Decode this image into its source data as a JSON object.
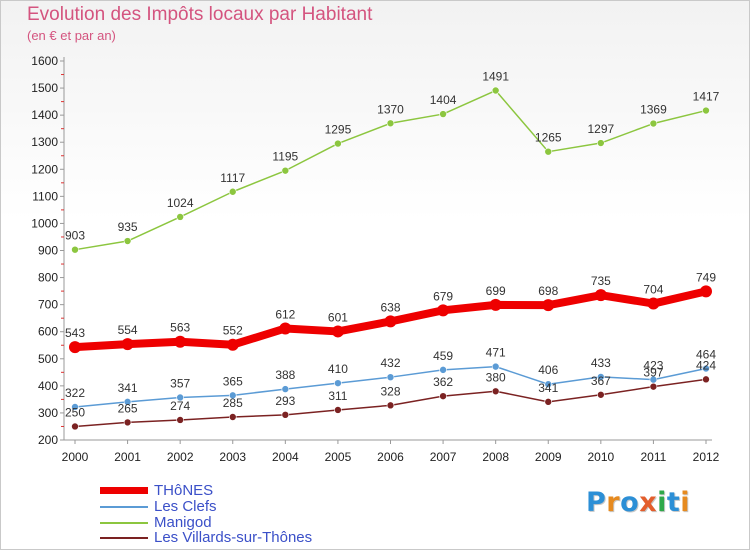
{
  "title": "Evolution des Impôts locaux par Habitant",
  "subtitle": "(en € et par an)",
  "logo": {
    "text": "Proxiti",
    "colors": [
      "#2c8fd6",
      "#e68a1f",
      "#2c8fd6",
      "#e35e2c",
      "#2fa84a",
      "#2c8fd6",
      "#e68a1f"
    ]
  },
  "chart_data": {
    "type": "line",
    "x": [
      2000,
      2001,
      2002,
      2003,
      2004,
      2005,
      2006,
      2007,
      2008,
      2009,
      2010,
      2011,
      2012
    ],
    "ylim": [
      200,
      1600
    ],
    "yticks": [
      200,
      300,
      400,
      500,
      600,
      700,
      800,
      900,
      1000,
      1100,
      1200,
      1300,
      1400,
      1500,
      1600
    ],
    "grid": false,
    "legend_position": "bottom-left",
    "series": [
      {
        "name": "THôNES",
        "color": "#ee0000",
        "values": [
          543,
          554,
          563,
          552,
          612,
          601,
          638,
          679,
          699,
          698,
          735,
          704,
          749
        ]
      },
      {
        "name": "Les Clefs",
        "color": "#5b9bd5",
        "values": [
          322,
          341,
          357,
          365,
          388,
          410,
          432,
          459,
          471,
          406,
          433,
          423,
          464
        ]
      },
      {
        "name": "Manigod",
        "color": "#8cc63f",
        "values": [
          903,
          935,
          1024,
          1117,
          1195,
          1295,
          1370,
          1404,
          1491,
          1265,
          1297,
          1369,
          1417
        ]
      },
      {
        "name": "Les Villards-sur-Thônes",
        "color": "#7b2222",
        "values": [
          250,
          265,
          274,
          285,
          293,
          311,
          328,
          362,
          380,
          341,
          367,
          397,
          424
        ]
      }
    ]
  }
}
